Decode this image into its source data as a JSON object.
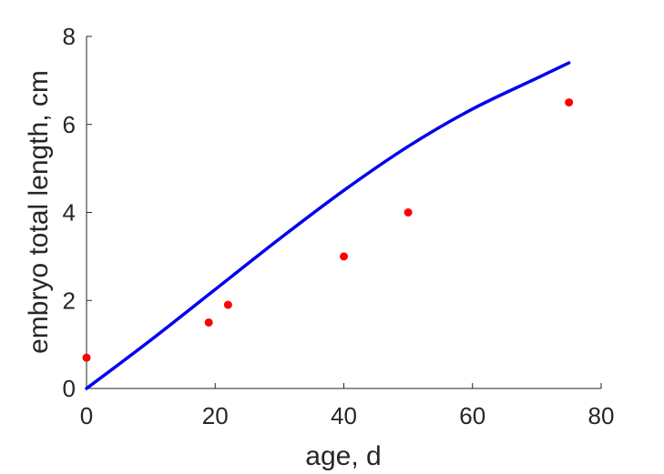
{
  "chart_data": {
    "type": "scatter",
    "xlabel": "age, d",
    "ylabel": "embryo total length, cm",
    "xlim": [
      0,
      80
    ],
    "ylim": [
      0,
      8
    ],
    "xticks": [
      0,
      20,
      40,
      60,
      80
    ],
    "yticks": [
      0,
      2,
      4,
      6,
      8
    ],
    "grid": false,
    "legend": "none",
    "series": [
      {
        "kind": "points",
        "color": "#ff0000",
        "x": [
          0,
          19,
          22,
          40,
          50,
          75
        ],
        "y": [
          0.7,
          1.5,
          1.9,
          3.0,
          4.0,
          6.5
        ]
      },
      {
        "kind": "line",
        "color": "#0000ee",
        "x": [
          0,
          10,
          20,
          30,
          40,
          50,
          60,
          70,
          75
        ],
        "y": [
          0.0,
          1.1,
          2.25,
          3.4,
          4.5,
          5.5,
          6.35,
          7.05,
          7.4
        ]
      }
    ]
  }
}
